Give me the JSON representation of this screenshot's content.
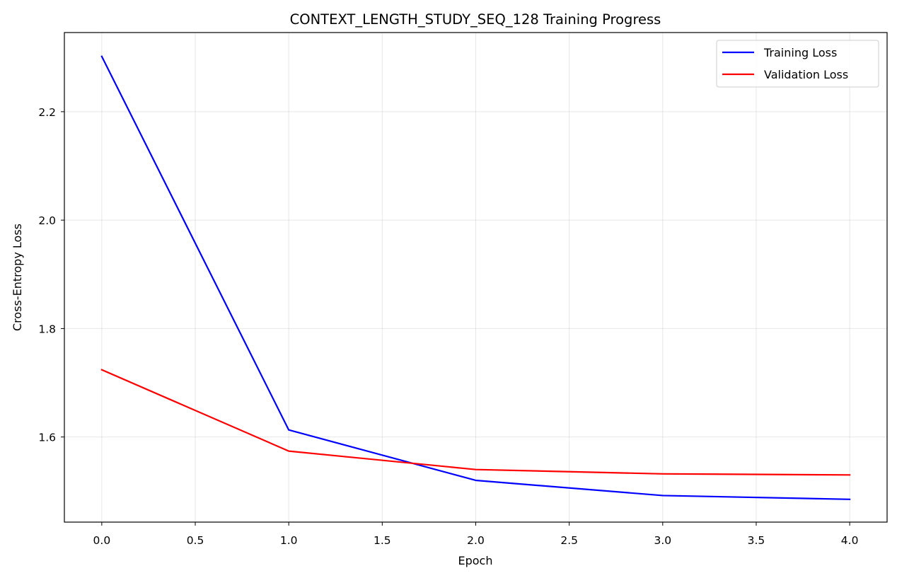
{
  "chart_data": {
    "type": "line",
    "title": "CONTEXT_LENGTH_STUDY_SEQ_128 Training Progress",
    "xlabel": "Epoch",
    "ylabel": "Cross-Entropy Loss",
    "x": [
      0,
      1,
      2,
      3,
      4
    ],
    "xlim": [
      -0.2,
      4.2
    ],
    "ylim": [
      1.443,
      2.346
    ],
    "x_ticks": [
      0.0,
      0.5,
      1.0,
      1.5,
      2.0,
      2.5,
      3.0,
      3.5,
      4.0
    ],
    "x_tick_labels": [
      "0.0",
      "0.5",
      "1.0",
      "1.5",
      "2.0",
      "2.5",
      "3.0",
      "3.5",
      "4.0"
    ],
    "y_ticks": [
      1.6,
      1.8,
      2.0,
      2.2
    ],
    "y_tick_labels": [
      "1.6",
      "1.8",
      "2.0",
      "2.2"
    ],
    "grid": true,
    "legend_position": "top-right",
    "series": [
      {
        "name": "Training Loss",
        "color": "#0000ff",
        "values": [
          2.302,
          1.613,
          1.52,
          1.492,
          1.485
        ]
      },
      {
        "name": "Validation Loss",
        "color": "#ff0000",
        "values": [
          1.724,
          1.574,
          1.54,
          1.532,
          1.53
        ]
      }
    ]
  }
}
